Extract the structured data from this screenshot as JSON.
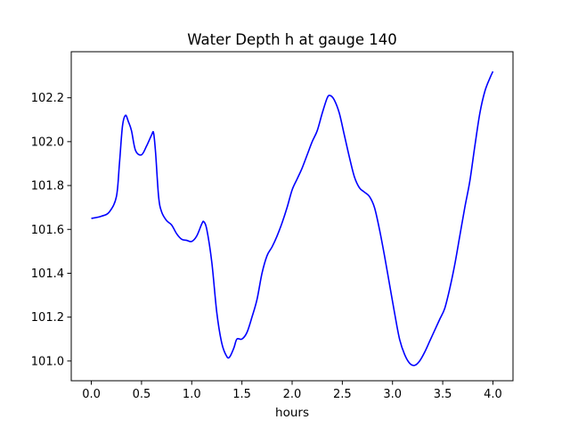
{
  "chart_data": {
    "type": "line",
    "title": "Water Depth h at gauge 140",
    "xlabel": "hours",
    "ylabel": "",
    "xlim": [
      -0.2,
      4.2
    ],
    "ylim": [
      100.91,
      102.41
    ],
    "xticks": [
      0.0,
      0.5,
      1.0,
      1.5,
      2.0,
      2.5,
      3.0,
      3.5,
      4.0
    ],
    "xtick_labels": [
      "0.0",
      "0.5",
      "1.0",
      "1.5",
      "2.0",
      "2.5",
      "3.0",
      "3.5",
      "4.0"
    ],
    "yticks": [
      101.0,
      101.2,
      101.4,
      101.6,
      101.8,
      102.0,
      102.2
    ],
    "ytick_labels": [
      "101.0",
      "101.2",
      "101.4",
      "101.6",
      "101.8",
      "102.0",
      "102.2"
    ],
    "grid": false,
    "legend": "none",
    "series": [
      {
        "color": "#0000ff",
        "x": [
          0.0,
          0.1,
          0.18,
          0.25,
          0.28,
          0.31,
          0.34,
          0.37,
          0.4,
          0.44,
          0.5,
          0.55,
          0.6,
          0.62,
          0.64,
          0.67,
          0.7,
          0.75,
          0.8,
          0.85,
          0.9,
          0.95,
          1.0,
          1.05,
          1.1,
          1.12,
          1.15,
          1.2,
          1.25,
          1.3,
          1.35,
          1.38,
          1.42,
          1.45,
          1.5,
          1.55,
          1.6,
          1.65,
          1.7,
          1.75,
          1.8,
          1.85,
          1.9,
          1.95,
          2.0,
          2.05,
          2.1,
          2.15,
          2.2,
          2.25,
          2.3,
          2.35,
          2.38,
          2.42,
          2.47,
          2.52,
          2.57,
          2.62,
          2.67,
          2.72,
          2.77,
          2.82,
          2.87,
          2.92,
          2.97,
          3.02,
          3.07,
          3.12,
          3.17,
          3.22,
          3.27,
          3.32,
          3.37,
          3.42,
          3.47,
          3.52,
          3.57,
          3.62,
          3.67,
          3.72,
          3.77,
          3.82,
          3.87,
          3.92,
          3.97,
          4.0
        ],
        "y": [
          101.65,
          101.66,
          101.68,
          101.75,
          101.9,
          102.07,
          102.12,
          102.09,
          102.05,
          101.96,
          101.94,
          101.98,
          102.03,
          102.04,
          101.95,
          101.75,
          101.68,
          101.64,
          101.62,
          101.58,
          101.555,
          101.55,
          101.545,
          101.57,
          101.625,
          101.635,
          101.6,
          101.45,
          101.22,
          101.08,
          101.02,
          101.02,
          101.06,
          101.1,
          101.1,
          101.13,
          101.2,
          101.28,
          101.4,
          101.48,
          101.52,
          101.57,
          101.63,
          101.7,
          101.78,
          101.83,
          101.88,
          101.94,
          102.0,
          102.05,
          102.13,
          102.2,
          102.21,
          102.19,
          102.13,
          102.03,
          101.93,
          101.84,
          101.79,
          101.77,
          101.75,
          101.7,
          101.6,
          101.48,
          101.35,
          101.22,
          101.1,
          101.03,
          100.99,
          100.98,
          101.0,
          101.04,
          101.09,
          101.14,
          101.19,
          101.24,
          101.33,
          101.44,
          101.57,
          101.7,
          101.82,
          101.98,
          102.13,
          102.23,
          102.29,
          102.32
        ]
      }
    ]
  }
}
